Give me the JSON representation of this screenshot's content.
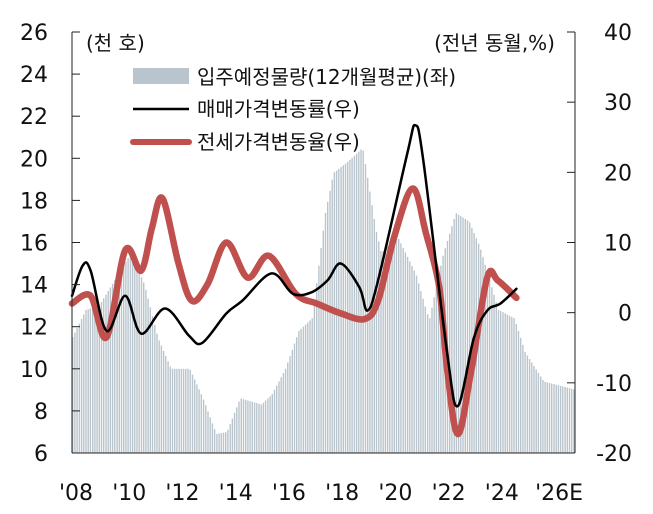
{
  "chart_data": {
    "type": "bar+line",
    "left_unit_label": "(천 호)",
    "right_unit_label": "(전년 동월,%)",
    "left_axis": {
      "ylim": [
        6,
        26
      ],
      "ticks": [
        6,
        8,
        10,
        12,
        14,
        16,
        18,
        20,
        22,
        24,
        26
      ]
    },
    "right_axis": {
      "ylim": [
        -20,
        40
      ],
      "ticks": [
        -20,
        -10,
        0,
        10,
        20,
        30,
        40
      ]
    },
    "x_axis": {
      "xlim": [
        2008,
        2026.9
      ],
      "tick_labels": [
        "'08",
        "'10",
        "'12",
        "'14",
        "'16",
        "'18",
        "'20",
        "'22",
        "'24",
        "'26E"
      ],
      "tick_years": [
        2008,
        2010,
        2012,
        2014,
        2016,
        2018,
        2020,
        2022,
        2024,
        2026
      ]
    },
    "grid": false,
    "legend_placement": "top-center",
    "series": [
      {
        "name": "입주예정물량(12개월평균)(좌)",
        "type": "bar",
        "axis": "left",
        "color": "#b9c4cc",
        "x": [
          2008.0,
          2008.5,
          2009.0,
          2010.2,
          2010.7,
          2011.2,
          2011.7,
          2012.4,
          2012.9,
          2013.4,
          2013.8,
          2014.3,
          2015.1,
          2015.5,
          2016.0,
          2016.5,
          2017.0,
          2017.5,
          2017.8,
          2018.4,
          2018.9,
          2019.4,
          2019.6,
          2020.2,
          2020.9,
          2021.4,
          2021.9,
          2022.4,
          2022.9,
          2023.3,
          2024.0,
          2024.6,
          2025.0,
          2025.7,
          2026.9
        ],
        "values": [
          11.5,
          12.8,
          13.0,
          15.5,
          14.0,
          11.5,
          10.0,
          10.0,
          8.6,
          6.9,
          7.0,
          8.6,
          8.3,
          8.8,
          10.0,
          11.8,
          12.4,
          17.4,
          19.3,
          19.9,
          20.5,
          16.6,
          15.5,
          16.3,
          14.5,
          12.3,
          15.3,
          17.4,
          17.0,
          15.8,
          12.8,
          12.4,
          10.8,
          9.4,
          9.0
        ]
      },
      {
        "name": "매매가격변동률(우)",
        "type": "line",
        "axis": "right",
        "color": "#000000",
        "x": [
          2008.0,
          2008.4,
          2008.7,
          2009.3,
          2010.0,
          2010.6,
          2011.5,
          2012.4,
          2012.9,
          2013.8,
          2014.4,
          2015.5,
          2016.3,
          2017.0,
          2017.6,
          2018.1,
          2018.8,
          2019.1,
          2019.5,
          2020.6,
          2020.9,
          2021.2,
          2022.1,
          2022.5,
          2023.1,
          2023.6,
          2024.1,
          2024.7
        ],
        "values": [
          2.4,
          6.7,
          6.0,
          -2.6,
          2.4,
          -3.0,
          0.6,
          -3.3,
          -4.3,
          -0.1,
          1.7,
          5.6,
          2.7,
          2.9,
          4.6,
          7.0,
          3.6,
          0.3,
          4.6,
          22.7,
          26.7,
          21.7,
          -5.9,
          -13.3,
          -3.6,
          0.3,
          1.3,
          3.4
        ]
      },
      {
        "name": "전세가격변동율(우)",
        "type": "line",
        "axis": "right",
        "color": "#c0504d",
        "x": [
          2008.0,
          2008.7,
          2009.3,
          2010.0,
          2010.6,
          2011.0,
          2011.4,
          2012.0,
          2012.5,
          2013.1,
          2013.8,
          2014.6,
          2015.4,
          2016.4,
          2017.2,
          2018.1,
          2019.0,
          2019.5,
          2020.1,
          2020.8,
          2021.3,
          2021.8,
          2022.1,
          2022.5,
          2023.0,
          2023.6,
          2024.0,
          2024.7
        ],
        "values": [
          1.3,
          2.4,
          -3.5,
          8.9,
          6.0,
          12.0,
          16.3,
          7.0,
          1.7,
          4.1,
          10.0,
          5.0,
          8.1,
          2.7,
          1.3,
          -0.1,
          -0.9,
          1.7,
          10.7,
          17.7,
          11.3,
          3.6,
          -8.3,
          -17.3,
          -8.3,
          5.0,
          4.6,
          2.1
        ]
      }
    ]
  }
}
